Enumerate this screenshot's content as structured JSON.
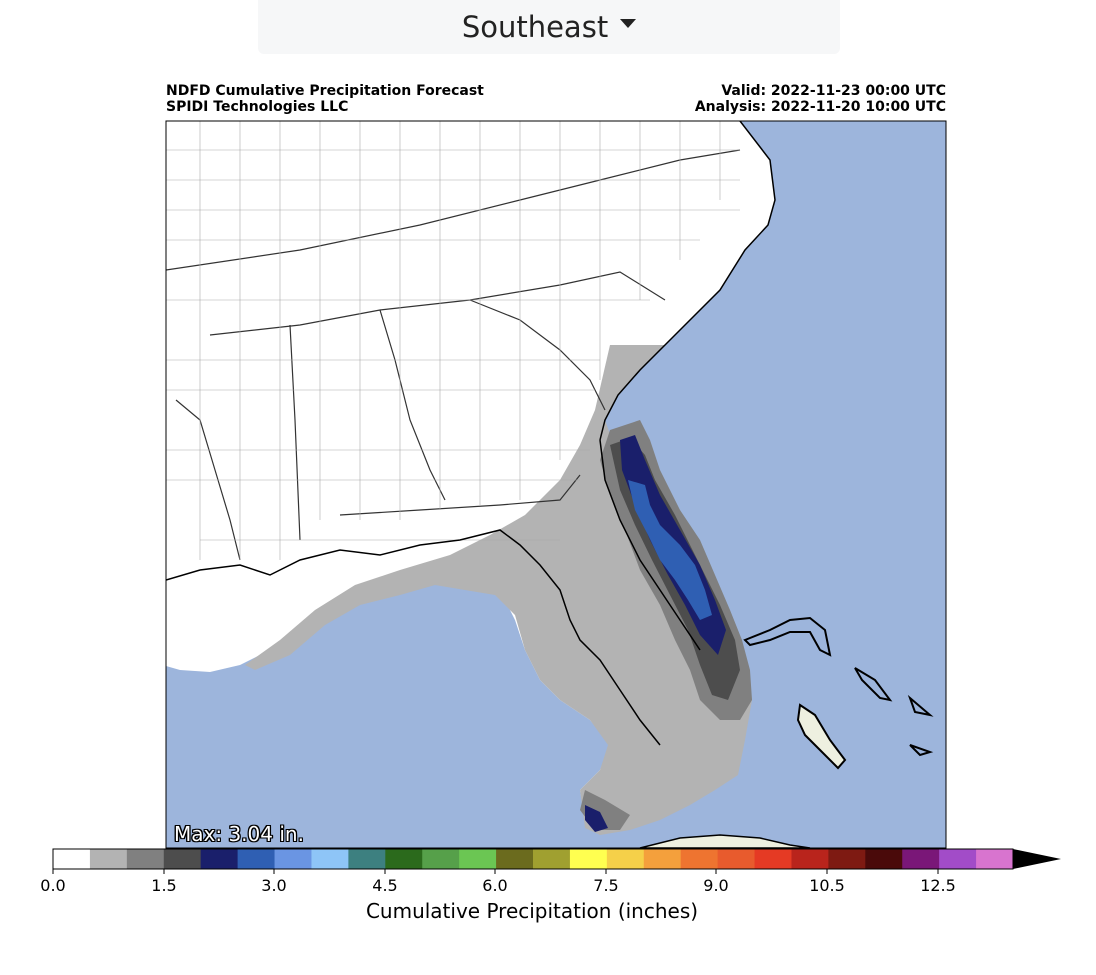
{
  "region_selector": {
    "label": "Southeast",
    "icon": "caret-down-icon"
  },
  "header": {
    "title": "NDFD Cumulative Precipitation Forecast",
    "org": "SPIDI Technologies LLC",
    "valid": "Valid: 2022-11-23 00:00 UTC",
    "analysis": "Analysis: 2022-11-20 10:00 UTC"
  },
  "map": {
    "max_label": "Max: 3.04 in.",
    "colors": {
      "ocean": "#9db5dc",
      "land_no_precip": "#ffffff",
      "bahamas_land": "#eef0e0",
      "boundaries": "#999999"
    }
  },
  "colorbar": {
    "title": "Cumulative Precipitation (inches)",
    "tick_labels": [
      "0.0",
      "1.5",
      "3.0",
      "4.5",
      "6.0",
      "7.5",
      "9.0",
      "10.5",
      "12.5"
    ],
    "colors": [
      "#ffffff",
      "#b3b3b3",
      "#808080",
      "#4d4d4d",
      "#1a1f6b",
      "#2f5fb3",
      "#6a95e3",
      "#8ec5f7",
      "#3d8080",
      "#2b6a1c",
      "#56a04a",
      "#6bc653",
      "#6b6b1e",
      "#a0a030",
      "#ffff50",
      "#f5d049",
      "#f4a03c",
      "#ee7430",
      "#e85b2d",
      "#e53a24",
      "#b9241c",
      "#7e1a12",
      "#4a0a0a",
      "#7a1778",
      "#a24cc8",
      "#d874cf"
    ],
    "overflow_color": "#000000"
  }
}
